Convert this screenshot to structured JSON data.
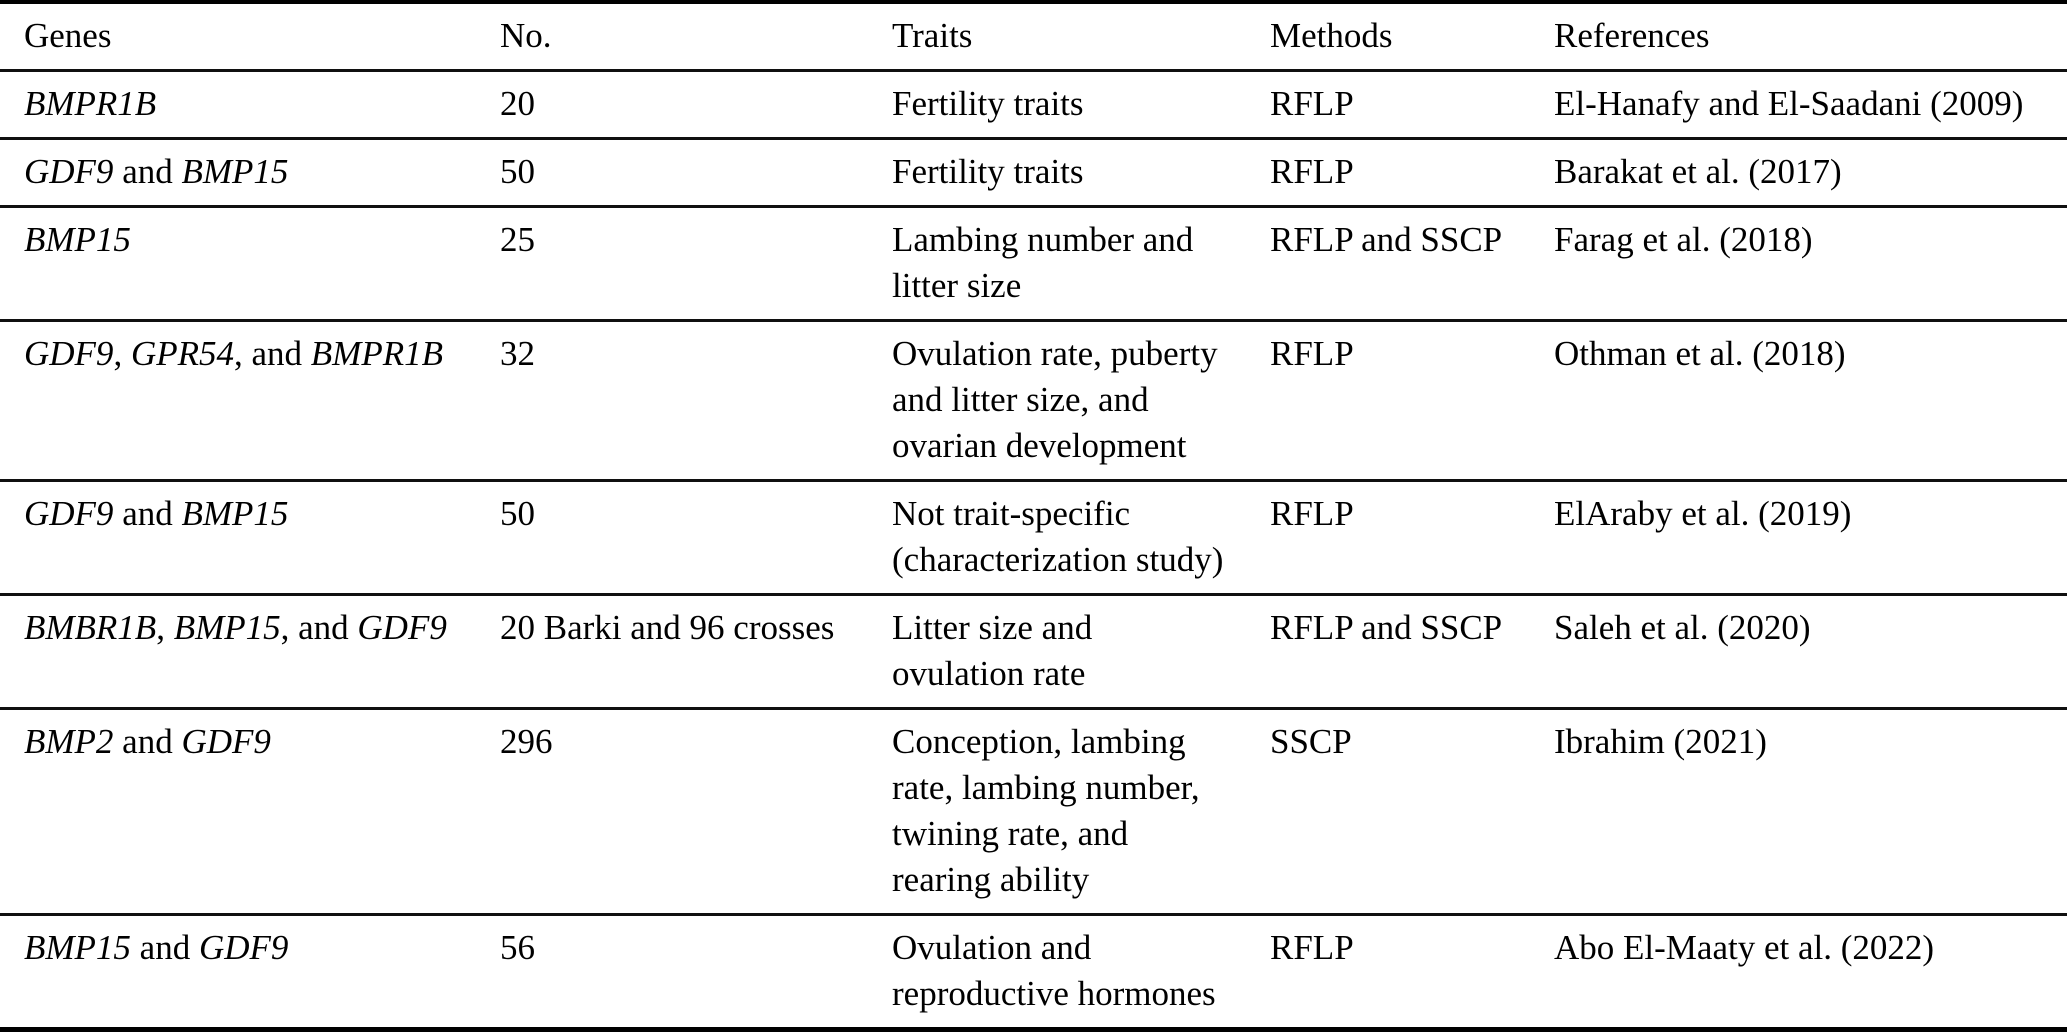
{
  "colors": {
    "text": "#000000",
    "background": "#ffffff",
    "rule": "#000000"
  },
  "table": {
    "columns": [
      {
        "key": "genes",
        "label": "Genes"
      },
      {
        "key": "no",
        "label": "No."
      },
      {
        "key": "traits",
        "label": "Traits"
      },
      {
        "key": "methods",
        "label": "Methods"
      },
      {
        "key": "references",
        "label": "References"
      }
    ],
    "rows": [
      {
        "genes": [
          {
            "t": "BMPR1B",
            "i": true
          }
        ],
        "no": "20",
        "traits": "Fertility traits",
        "methods": "RFLP",
        "references": "El-Hanafy and El-Saadani (2009)"
      },
      {
        "genes": [
          {
            "t": "GDF9",
            "i": true
          },
          {
            "t": " and ",
            "i": false
          },
          {
            "t": "BMP15",
            "i": true
          }
        ],
        "no": "50",
        "traits": "Fertility traits",
        "methods": "RFLP",
        "references": "Barakat et al. (2017)"
      },
      {
        "genes": [
          {
            "t": "BMP15",
            "i": true
          }
        ],
        "no": "25",
        "traits": "Lambing number and\nlitter size",
        "methods": "RFLP and SSCP",
        "references": "Farag et al. (2018)"
      },
      {
        "genes": [
          {
            "t": "GDF9",
            "i": true
          },
          {
            "t": ", ",
            "i": false
          },
          {
            "t": "GPR54",
            "i": true
          },
          {
            "t": ", and ",
            "i": false
          },
          {
            "t": "BMPR1B",
            "i": true
          }
        ],
        "no": "32",
        "traits": "Ovulation rate, puberty\nand litter size, and\novarian development",
        "methods": "RFLP",
        "references": "Othman et al. (2018)"
      },
      {
        "genes": [
          {
            "t": "GDF9",
            "i": true
          },
          {
            "t": " and ",
            "i": false
          },
          {
            "t": "BMP15",
            "i": true
          }
        ],
        "no": "50",
        "traits": "Not trait-specific\n(characterization study)",
        "methods": "RFLP",
        "references": "ElAraby et al. (2019)"
      },
      {
        "genes": [
          {
            "t": "BMBR1B",
            "i": true
          },
          {
            "t": ", ",
            "i": false
          },
          {
            "t": "BMP15",
            "i": true
          },
          {
            "t": ", and ",
            "i": false
          },
          {
            "t": "GDF9",
            "i": true
          }
        ],
        "no": "20 Barki and 96 crosses",
        "traits": "Litter size and\novulation rate",
        "methods": "RFLP and SSCP",
        "references": "Saleh et al. (2020)"
      },
      {
        "genes": [
          {
            "t": "BMP2",
            "i": true
          },
          {
            "t": " and ",
            "i": false
          },
          {
            "t": "GDF9",
            "i": true
          }
        ],
        "no": "296",
        "traits": "Conception, lambing\nrate, lambing number,\ntwining rate, and\nrearing ability",
        "methods": "SSCP",
        "references": "Ibrahim (2021)"
      },
      {
        "genes": [
          {
            "t": "BMP15",
            "i": true
          },
          {
            "t": " and ",
            "i": false
          },
          {
            "t": "GDF9",
            "i": true
          }
        ],
        "no": "56",
        "traits": "Ovulation and\nreproductive hormones",
        "methods": "RFLP",
        "references": "Abo El-Maaty et al. (2022)"
      }
    ]
  }
}
